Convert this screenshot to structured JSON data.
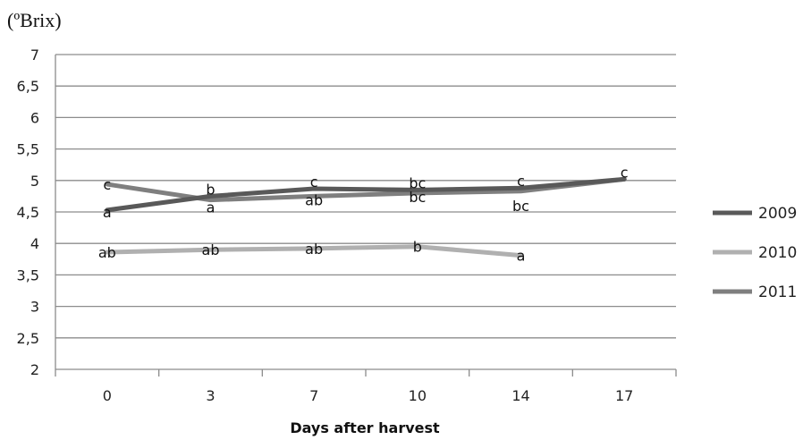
{
  "chart_data": {
    "type": "line",
    "title": "",
    "ylabel": "(ºBrix)",
    "xlabel": "Days after harvest",
    "ylim": [
      2,
      7
    ],
    "yticks": [
      "2",
      "2,5",
      "3",
      "3,5",
      "4",
      "4,5",
      "5",
      "5,5",
      "6",
      "6,5",
      "7"
    ],
    "categories": [
      "0",
      "3",
      "7",
      "10",
      "14",
      "17"
    ],
    "grid": "horizontal",
    "legend_position": "right",
    "series": [
      {
        "name": "2009",
        "color": "#595959",
        "values": [
          4.53,
          4.75,
          4.87,
          4.85,
          4.88,
          5.02
        ],
        "labels": [
          "a",
          "b",
          "c",
          "bc",
          "c",
          "c"
        ]
      },
      {
        "name": "2010",
        "color": "#b0b0b0",
        "values": [
          3.86,
          3.9,
          3.92,
          3.95,
          3.81,
          null
        ],
        "labels": [
          "ab",
          "ab",
          "ab",
          "b",
          "a",
          ""
        ]
      },
      {
        "name": "2011",
        "color": "#7f7f7f",
        "values": [
          4.94,
          4.69,
          4.75,
          4.8,
          4.83,
          5.02
        ],
        "labels": [
          "c",
          "a",
          "ab",
          "bc",
          "bc",
          ""
        ]
      }
    ]
  }
}
